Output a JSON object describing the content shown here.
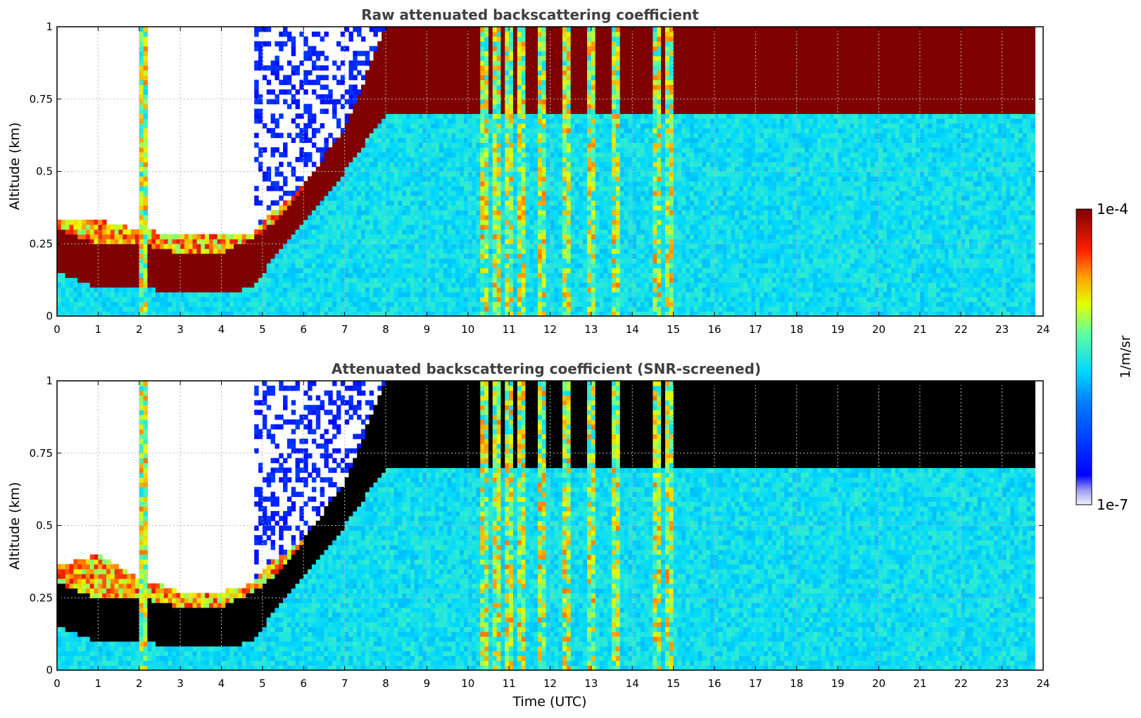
{
  "chart_data": [
    {
      "type": "heatmap",
      "title": "Raw attenuated backscattering coefficient",
      "xlabel": "",
      "ylabel": "Altitude (km)",
      "xlim": [
        0,
        24
      ],
      "ylim": [
        0,
        1
      ],
      "x_ticks": [
        "0",
        "1",
        "2",
        "3",
        "4",
        "5",
        "6",
        "7",
        "8",
        "9",
        "10",
        "11",
        "12",
        "13",
        "14",
        "15",
        "16",
        "17",
        "18",
        "19",
        "20",
        "21",
        "22",
        "23",
        "24"
      ],
      "y_ticks": [
        "0",
        "0.25",
        "0.5",
        "0.75",
        "1"
      ],
      "grid": true,
      "screened": false,
      "data_end_hour": 23.8,
      "boundary_layer_top_km": [
        [
          0,
          0.33
        ],
        [
          1,
          0.33
        ],
        [
          2,
          0.3
        ],
        [
          3,
          0.28
        ],
        [
          4,
          0.28
        ],
        [
          4.8,
          0.28
        ],
        [
          5,
          0.33
        ],
        [
          6,
          0.45
        ],
        [
          7,
          0.62
        ],
        [
          7.6,
          0.8
        ],
        [
          8,
          1.0
        ]
      ],
      "dense_aerosol_layer_km": [
        [
          0,
          0.15,
          0.3
        ],
        [
          1,
          0.1,
          0.25
        ],
        [
          2,
          0.1,
          0.25
        ],
        [
          3,
          0.08,
          0.22
        ],
        [
          4,
          0.08,
          0.22
        ],
        [
          4.8,
          0.1,
          0.27
        ],
        [
          5.5,
          0.25,
          0.35
        ],
        [
          6,
          0.32,
          0.45
        ],
        [
          7,
          0.5,
          0.65
        ],
        [
          8,
          0.7,
          1.0
        ]
      ],
      "high_signal_columns_hours": [
        2.1,
        10.4,
        10.7,
        11.0,
        11.3,
        11.8,
        12.4,
        13.0,
        13.6,
        14.6,
        14.9
      ]
    },
    {
      "type": "heatmap",
      "title": "Attenuated backscattering coefficient (SNR-screened)",
      "xlabel": "Time (UTC)",
      "ylabel": "Altitude (km)",
      "xlim": [
        0,
        24
      ],
      "ylim": [
        0,
        1
      ],
      "x_ticks": [
        "0",
        "1",
        "2",
        "3",
        "4",
        "5",
        "6",
        "7",
        "8",
        "9",
        "10",
        "11",
        "12",
        "13",
        "14",
        "15",
        "16",
        "17",
        "18",
        "19",
        "20",
        "21",
        "22",
        "23",
        "24"
      ],
      "y_ticks": [
        "0",
        "0.25",
        "0.5",
        "0.75",
        "1"
      ],
      "grid": true,
      "screened": true,
      "data_end_hour": 23.8,
      "boundary_layer_top_km": [
        [
          0,
          0.36
        ],
        [
          1,
          0.4
        ],
        [
          2,
          0.32
        ],
        [
          3,
          0.27
        ],
        [
          4,
          0.27
        ],
        [
          4.8,
          0.3
        ],
        [
          5,
          0.35
        ],
        [
          6,
          0.45
        ],
        [
          7,
          0.62
        ],
        [
          7.6,
          0.8
        ],
        [
          8,
          1.0
        ]
      ],
      "dense_aerosol_layer_km": [
        [
          0,
          0.15,
          0.3
        ],
        [
          1,
          0.1,
          0.25
        ],
        [
          2,
          0.1,
          0.25
        ],
        [
          3,
          0.08,
          0.22
        ],
        [
          4,
          0.08,
          0.22
        ],
        [
          4.8,
          0.1,
          0.27
        ],
        [
          5.5,
          0.25,
          0.35
        ],
        [
          6,
          0.32,
          0.45
        ],
        [
          7,
          0.5,
          0.65
        ],
        [
          8,
          0.7,
          1.0
        ]
      ],
      "high_signal_columns_hours": [
        2.1,
        10.4,
        10.7,
        11.0,
        11.3,
        11.8,
        12.4,
        13.0,
        13.6,
        14.6,
        14.9
      ]
    }
  ],
  "colorbar": {
    "max_label": "1e-4",
    "min_label": "1e-7",
    "unit_label": "1/m/sr",
    "scale": "log",
    "colormap": "jet"
  },
  "colors": {
    "title_text": "#404040",
    "grid": "#bbbbbb",
    "saturated_screened": "#000000"
  }
}
